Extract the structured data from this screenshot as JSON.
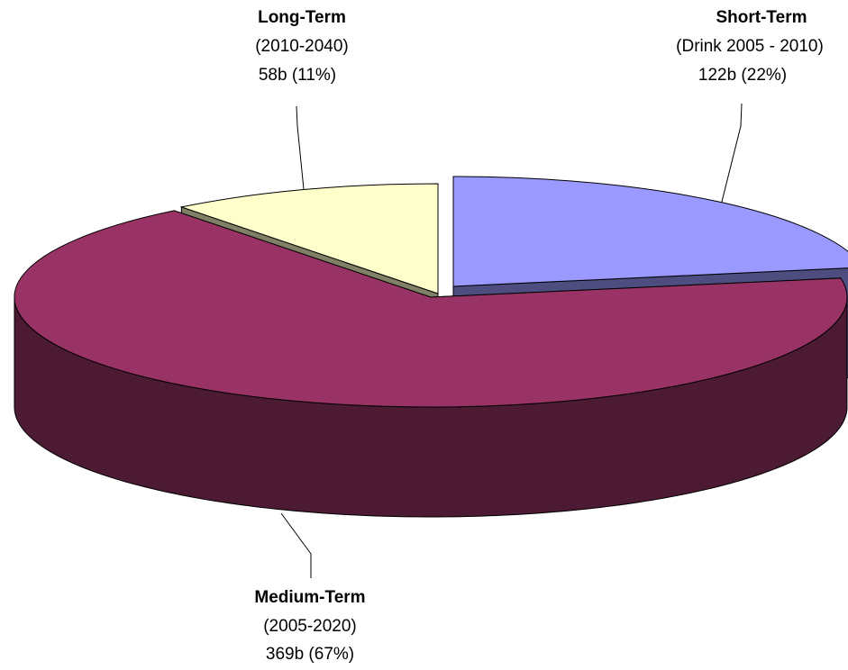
{
  "chart_data": {
    "type": "pie3d",
    "categories": [
      "Short-Term",
      "Medium-Term",
      "Long-Term"
    ],
    "periods": [
      "(Drink 2005 - 2010)",
      "(2005-2020)",
      "(2010-2040)"
    ],
    "values": [
      122,
      369,
      58
    ],
    "value_labels": [
      "122b (22%)",
      "369b (67%)",
      "58b (11%)"
    ],
    "colors": [
      "#9999ff",
      "#993366",
      "#ffffcc"
    ]
  }
}
